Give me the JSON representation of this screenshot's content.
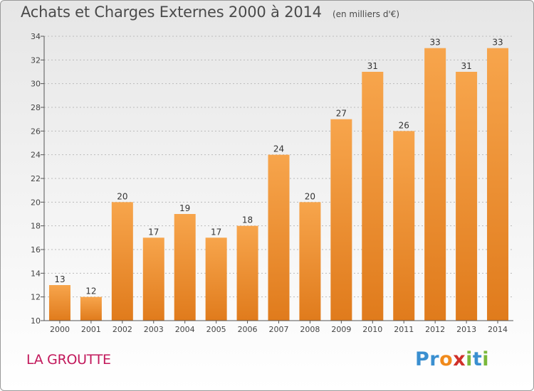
{
  "title": "Achats et Charges Externes 2000 à 2014",
  "unit": "(en milliers d'€)",
  "commune": "LA GROUTTE",
  "logo": {
    "text": "Proxiti",
    "letter_colors": [
      "#3a8fd0",
      "#3a8fd0",
      "#f08a1c",
      "#d0302a",
      "#7ab83a",
      "#3a8fd0",
      "#7ab83a"
    ]
  },
  "colors": {
    "bar_top": "#f7a54c",
    "bar_bottom": "#e07b1c",
    "axis": "#555555",
    "grid": "#bbbbbb"
  },
  "chart_data": {
    "type": "bar",
    "categories": [
      "2000",
      "2001",
      "2002",
      "2003",
      "2004",
      "2005",
      "2006",
      "2007",
      "2008",
      "2009",
      "2010",
      "2011",
      "2012",
      "2013",
      "2014"
    ],
    "values": [
      13,
      12,
      20,
      17,
      19,
      17,
      18,
      24,
      20,
      27,
      31,
      26,
      33,
      31,
      33
    ],
    "ylim": [
      10,
      34
    ],
    "yticks": [
      10,
      12,
      14,
      16,
      18,
      20,
      22,
      24,
      26,
      28,
      30,
      32,
      34
    ],
    "xlabel": "",
    "ylabel": ""
  }
}
